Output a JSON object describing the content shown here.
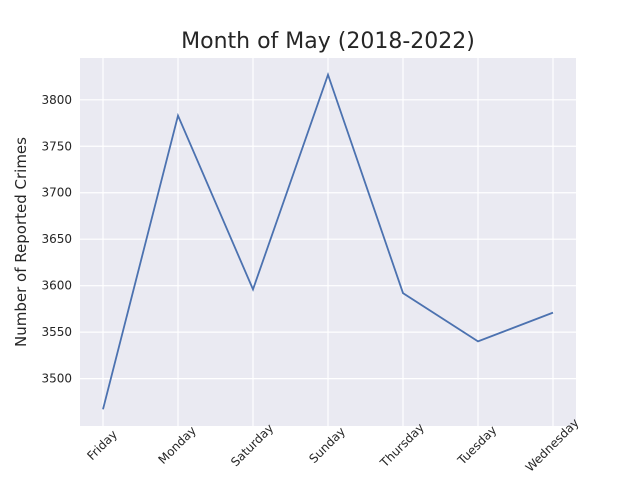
{
  "chart_data": {
    "type": "line",
    "title": "Month of May (2018-2022)",
    "xlabel": "",
    "ylabel": "Number of Reported Crimes",
    "categories": [
      "Friday",
      "Monday",
      "Saturday",
      "Sunday",
      "Thursday",
      "Tuesday",
      "Wednesday"
    ],
    "series": [
      {
        "values": [
          3467,
          3783,
          3596,
          3827,
          3592,
          3540,
          3571
        ]
      }
    ],
    "yticks": [
      3500,
      3550,
      3600,
      3650,
      3700,
      3750,
      3800
    ],
    "ylim": [
      3449,
      3845
    ],
    "grid": true,
    "style": {
      "background": "#eaeaf2",
      "grid_color": "#ffffff",
      "line_color": "#4c72b0"
    }
  }
}
